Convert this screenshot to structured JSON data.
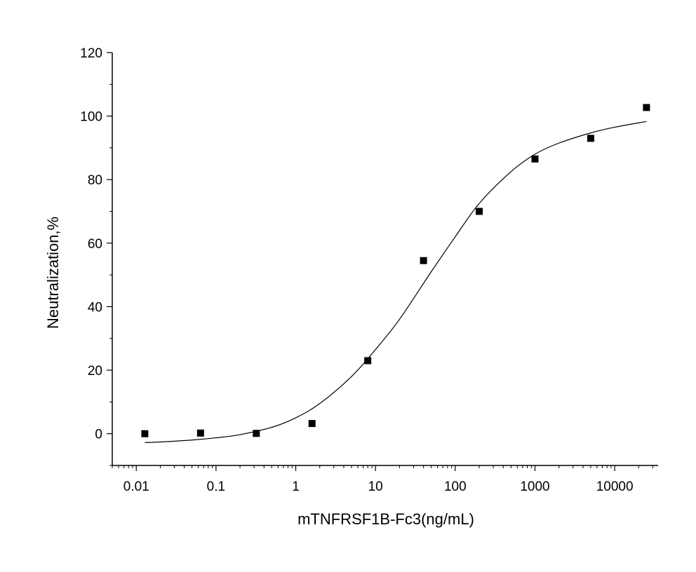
{
  "chart_data": {
    "type": "scatter",
    "title": "",
    "xlabel": "mTNFRSF1B-Fc3(ng/mL)",
    "ylabel": "Neutralization,%",
    "xscale": "log",
    "xlim": [
      0.005,
      35000
    ],
    "ylim": [
      -10,
      120
    ],
    "x_ticks": [
      0.01,
      0.1,
      1,
      10,
      100,
      1000,
      10000
    ],
    "x_tick_labels": [
      "0.01",
      "0.1",
      "1",
      "10",
      "100",
      "1000",
      "10000"
    ],
    "y_ticks": [
      0,
      20,
      40,
      60,
      80,
      100,
      120
    ],
    "y_tick_labels": [
      "0",
      "20",
      "40",
      "60",
      "80",
      "100",
      "120"
    ],
    "grid": false,
    "series": [
      {
        "marker": "square",
        "color": "#000000",
        "x": [
          0.0128,
          0.064,
          0.32,
          1.6,
          8,
          40,
          200,
          1000,
          5000,
          25000
        ],
        "y": [
          0.0,
          0.2,
          0.1,
          3.2,
          23.0,
          54.5,
          70.0,
          86.5,
          93.0,
          102.7
        ]
      },
      {
        "kind": "fitted-curve",
        "color": "#000000",
        "x": [
          0.0128,
          0.02,
          0.05,
          0.1,
          0.2,
          0.5,
          1,
          2,
          5,
          10,
          20,
          50,
          100,
          200,
          500,
          1000,
          2000,
          5000,
          10000,
          25000
        ],
        "y": [
          -2.8,
          -2.6,
          -2.0,
          -1.3,
          -0.3,
          2.0,
          5.0,
          9.5,
          18.0,
          26.5,
          36.0,
          51.0,
          62.0,
          72.5,
          82.5,
          88.0,
          91.5,
          94.7,
          96.5,
          98.3
        ]
      }
    ]
  }
}
